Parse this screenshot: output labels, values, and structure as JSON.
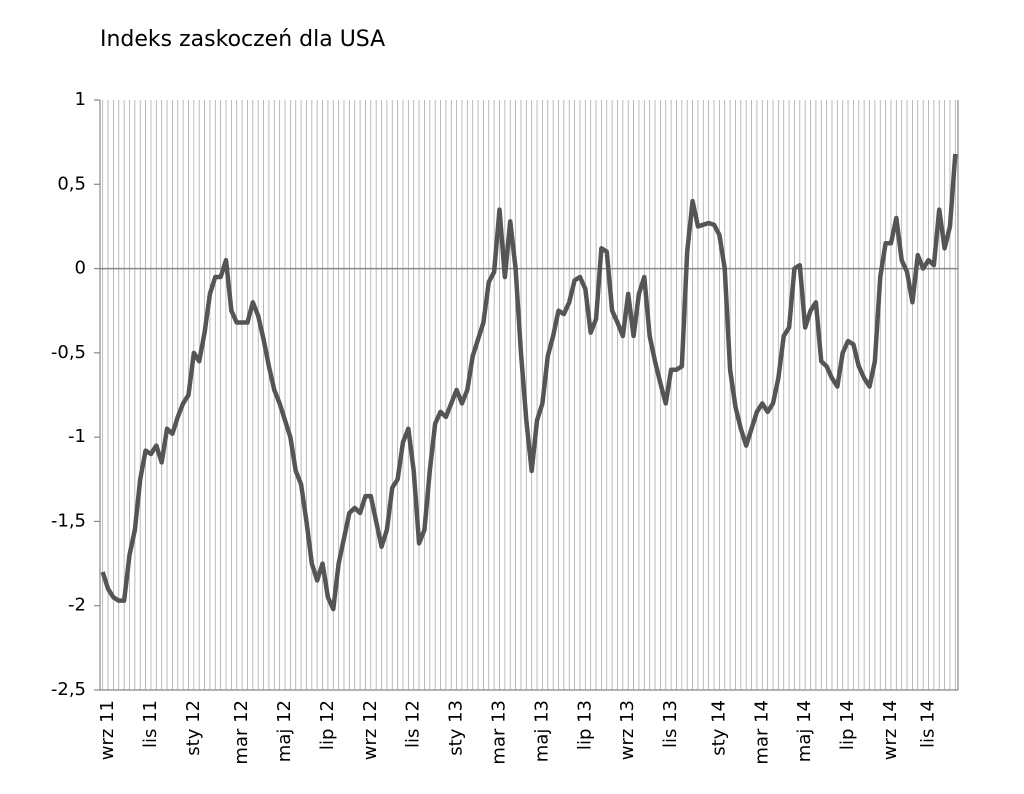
{
  "chart_data": {
    "type": "line",
    "title": "Indeks zaskoczeń dla USA",
    "categories": [
      null,
      "wrz 11",
      null,
      null,
      null,
      null,
      null,
      null,
      null,
      "lis 11",
      null,
      null,
      null,
      null,
      null,
      null,
      null,
      "sty 12",
      null,
      null,
      null,
      null,
      null,
      null,
      null,
      null,
      "mar 12",
      null,
      null,
      null,
      null,
      null,
      null,
      null,
      "maj 12",
      null,
      null,
      null,
      null,
      null,
      null,
      null,
      "lip 12",
      null,
      null,
      null,
      null,
      null,
      null,
      null,
      "wrz 12",
      null,
      null,
      null,
      null,
      null,
      null,
      null,
      "lis 12",
      null,
      null,
      null,
      null,
      null,
      null,
      null,
      "sty 13",
      null,
      null,
      null,
      null,
      null,
      null,
      null,
      "mar 13",
      null,
      null,
      null,
      null,
      null,
      null,
      null,
      "maj 13",
      null,
      null,
      null,
      null,
      null,
      null,
      null,
      "lip 13",
      null,
      null,
      null,
      null,
      null,
      null,
      null,
      "wrz 13",
      null,
      null,
      null,
      null,
      null,
      null,
      null,
      "lis 13",
      null,
      null,
      null,
      null,
      null,
      null,
      null,
      null,
      "sty 14",
      null,
      null,
      null,
      null,
      null,
      null,
      null,
      "mar 14",
      null,
      null,
      null,
      null,
      null,
      null,
      null,
      "maj 14",
      null,
      null,
      null,
      null,
      null,
      null,
      null,
      "lip 14",
      null,
      null,
      null,
      null,
      null,
      null,
      null,
      "wrz 14",
      null,
      null,
      null,
      null,
      null,
      null,
      "lis 14",
      null,
      null,
      null,
      null,
      null
    ],
    "series": [
      {
        "color": "#555555",
        "values": [
          -1.8,
          -1.9,
          -1.95,
          -1.97,
          -1.97,
          -1.7,
          -1.55,
          -1.25,
          -1.08,
          -1.1,
          -1.05,
          -1.15,
          -0.95,
          -0.98,
          -0.88,
          -0.8,
          -0.75,
          -0.5,
          -0.55,
          -0.38,
          -0.15,
          -0.05,
          -0.05,
          0.05,
          -0.25,
          -0.32,
          -0.32,
          -0.32,
          -0.2,
          -0.28,
          -0.42,
          -0.58,
          -0.72,
          -0.8,
          -0.9,
          -1.0,
          -1.2,
          -1.28,
          -1.5,
          -1.75,
          -1.85,
          -1.75,
          -1.95,
          -2.02,
          -1.75,
          -1.6,
          -1.45,
          -1.42,
          -1.45,
          -1.35,
          -1.35,
          -1.5,
          -1.65,
          -1.55,
          -1.3,
          -1.25,
          -1.03,
          -0.95,
          -1.2,
          -1.63,
          -1.55,
          -1.2,
          -0.92,
          -0.85,
          -0.88,
          -0.8,
          -0.72,
          -0.8,
          -0.72,
          -0.52,
          -0.42,
          -0.32,
          -0.08,
          -0.02,
          0.35,
          -0.05,
          0.28,
          0.0,
          -0.5,
          -0.9,
          -1.2,
          -0.9,
          -0.8,
          -0.52,
          -0.4,
          -0.25,
          -0.27,
          -0.2,
          -0.07,
          -0.05,
          -0.12,
          -0.38,
          -0.3,
          0.12,
          0.1,
          -0.25,
          -0.32,
          -0.4,
          -0.15,
          -0.4,
          -0.15,
          -0.05,
          -0.4,
          -0.55,
          -0.68,
          -0.8,
          -0.6,
          -0.6,
          -0.58,
          0.1,
          0.4,
          0.25,
          0.26,
          0.27,
          0.26,
          0.2,
          0.0,
          -0.6,
          -0.82,
          -0.95,
          -1.05,
          -0.95,
          -0.85,
          -0.8,
          -0.85,
          -0.8,
          -0.65,
          -0.4,
          -0.35,
          0.0,
          0.02,
          -0.35,
          -0.25,
          -0.2,
          -0.55,
          -0.58,
          -0.65,
          -0.7,
          -0.5,
          -0.43,
          -0.45,
          -0.58,
          -0.65,
          -0.7,
          -0.55,
          -0.05,
          0.15,
          0.15,
          0.3,
          0.05,
          -0.02,
          -0.2,
          0.08,
          0.0,
          0.05,
          0.02,
          0.35,
          0.12,
          0.25,
          0.68
        ]
      }
    ],
    "ylim": [
      -2.5,
      1
    ],
    "yticks": [
      {
        "value": -2.5,
        "label": "-2,5"
      },
      -2,
      {
        "value": -1.5,
        "label": "-1,5"
      },
      -1,
      {
        "value": -0.5,
        "label": "-0,5"
      },
      0,
      {
        "value": 0.5,
        "label": "0,5"
      },
      1
    ],
    "grid": true
  }
}
